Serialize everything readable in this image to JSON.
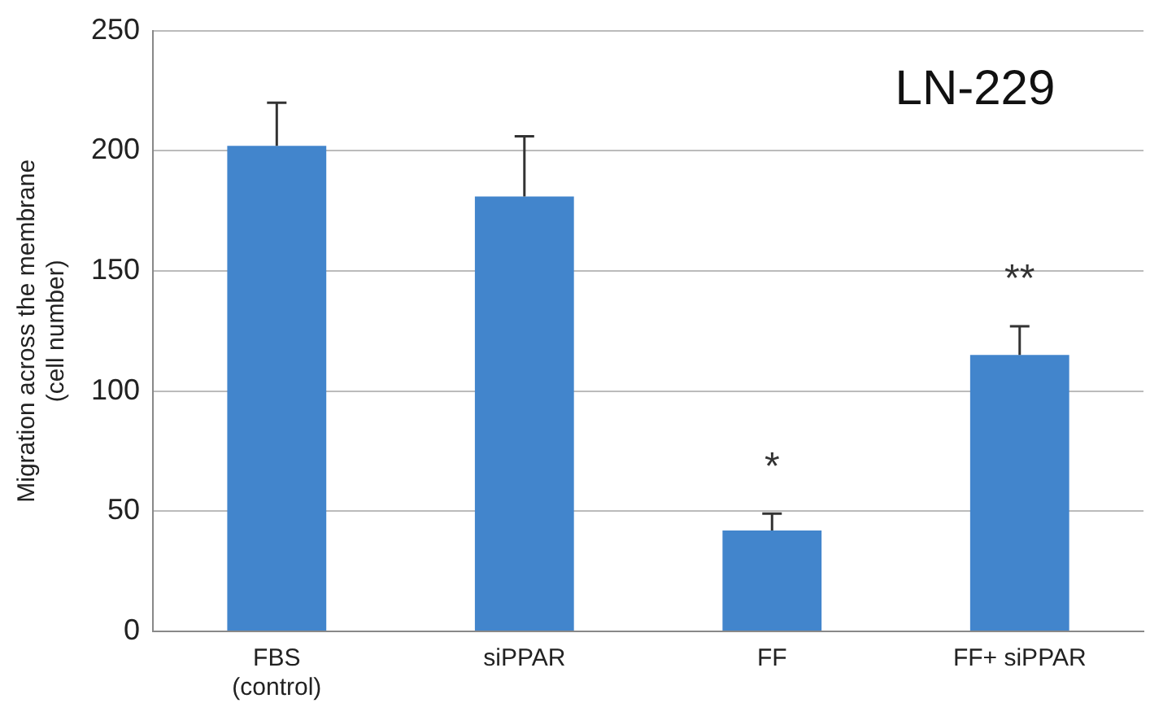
{
  "chart_data": {
    "type": "bar",
    "title": "LN-229",
    "ylabel": "Migration across the membrane\n(cell number)",
    "categories": [
      "FBS\n(control)",
      "siPPAR",
      "FF",
      "FF+ siPPAR"
    ],
    "values": [
      202,
      181,
      42,
      115
    ],
    "errors": [
      [
        202,
        220
      ],
      [
        181,
        206
      ],
      [
        42,
        49
      ],
      [
        115,
        127
      ]
    ],
    "color": "#4285cc",
    "ylim": [
      0,
      250
    ],
    "yticks": [
      0,
      50,
      100,
      150,
      200,
      250
    ],
    "grid": "y",
    "legend": false,
    "annotations": [
      "*",
      "**"
    ]
  }
}
